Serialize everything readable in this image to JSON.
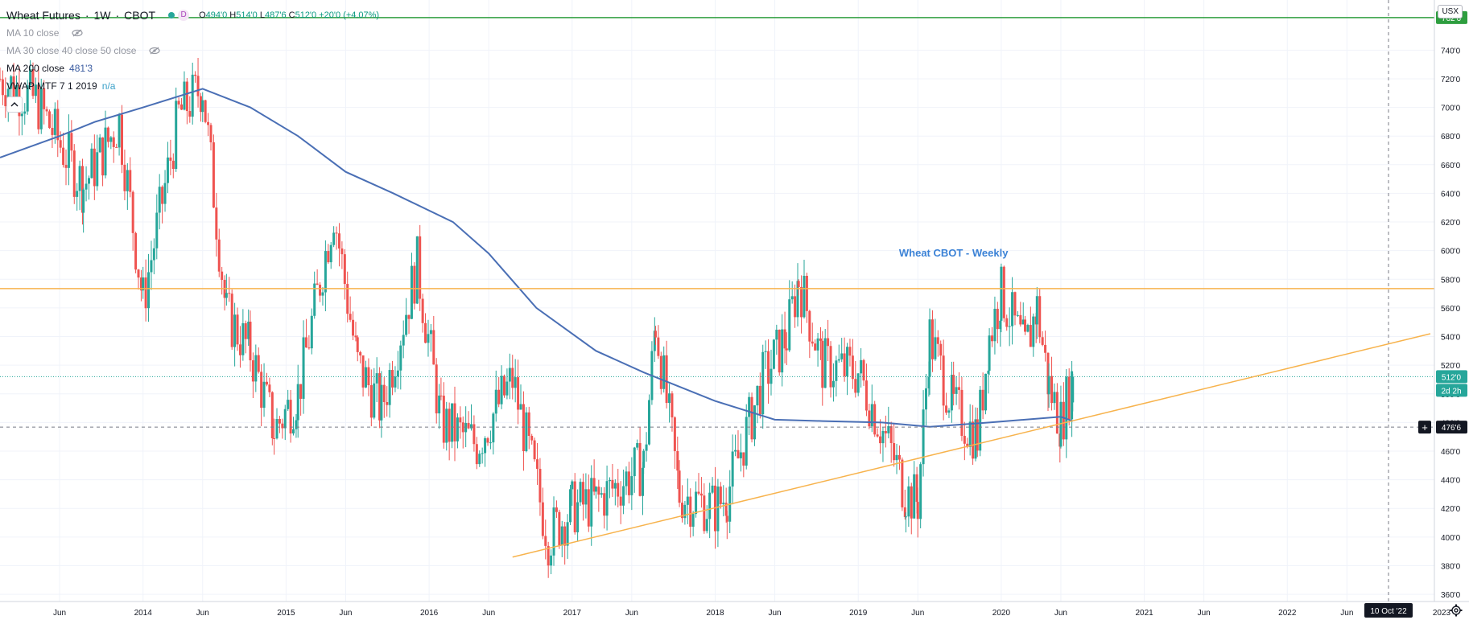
{
  "header": {
    "symbol": "Wheat Futures",
    "interval": "1W",
    "exchange": "CBOT",
    "badge": "D",
    "ohlc": {
      "o_key": "O",
      "o": "494'0",
      "h_key": "H",
      "h": "514'0",
      "l_key": "L",
      "l": "487'6",
      "c_key": "C",
      "c": "512'0",
      "change": "+20'0 (+4.07%)"
    }
  },
  "indicators": [
    {
      "label": "MA 10 close",
      "value": "",
      "hidden": true
    },
    {
      "label": "MA 30 close 40 close 50 close",
      "value": "",
      "hidden": true
    },
    {
      "label": "MA 200 close",
      "value": "481'3",
      "hidden": false
    },
    {
      "label": "VWAP MTF 7 1 2019",
      "value": "n/a",
      "hidden": false
    }
  ],
  "currency_button": "USX",
  "annotation": "Wheat CBOT - Weekly",
  "colors": {
    "up": "#26a69a",
    "down": "#ef5350",
    "ma200": "#4a6fb5",
    "support": "#f7b34d",
    "resistance": "#f7b34d",
    "top_line": "#2e9e3f",
    "price_line": "#26a69a",
    "grid": "#f0f3fa"
  },
  "price_axis": {
    "ticks": [
      "740'0",
      "720'0",
      "700'0",
      "680'0",
      "660'0",
      "640'0",
      "620'0",
      "600'0",
      "580'0",
      "560'0",
      "540'0",
      "520'0",
      "500'0",
      "480'0",
      "460'0",
      "440'0",
      "420'0",
      "400'0",
      "380'0",
      "360'0"
    ],
    "top_label": "762'6",
    "current_label": "512'0",
    "countdown_label": "2d 2h",
    "crosshair_label": "476'6"
  },
  "time_axis": {
    "ticks": [
      "Jun",
      "2014",
      "Jun",
      "2015",
      "Jun",
      "2016",
      "Jun",
      "2017",
      "Jun",
      "2018",
      "Jun",
      "2019",
      "Jun",
      "2020",
      "Jun",
      "2021",
      "Jun",
      "2022",
      "Jun",
      "2023"
    ],
    "crosshair_label": "10 Oct '22"
  },
  "chart_data": {
    "type": "candlestick",
    "ylim": [
      355,
      775
    ],
    "x_range": [
      "2013-01",
      "2023-01"
    ],
    "horizontal_levels": {
      "resistance": 573.5,
      "top": 762.75,
      "current": 512,
      "crosshair": 476.75
    },
    "trendline": {
      "from": [
        "2016-08",
        386
      ],
      "to": [
        "2023-01",
        542
      ]
    },
    "ma200": [
      [
        "2013-01",
        665
      ],
      [
        "2013-06",
        680
      ],
      [
        "2013-09",
        690
      ],
      [
        "2014-01",
        700
      ],
      [
        "2014-06",
        713
      ],
      [
        "2014-10",
        700
      ],
      [
        "2015-02",
        680
      ],
      [
        "2015-06",
        655
      ],
      [
        "2015-10",
        640
      ],
      [
        "2016-03",
        620
      ],
      [
        "2016-06",
        598
      ],
      [
        "2016-10",
        560
      ],
      [
        "2017-03",
        530
      ],
      [
        "2017-07",
        515
      ],
      [
        "2018-01",
        495
      ],
      [
        "2018-06",
        482
      ],
      [
        "2018-10",
        481
      ],
      [
        "2019-03",
        480
      ],
      [
        "2019-07",
        477
      ],
      [
        "2019-12",
        480
      ],
      [
        "2020-06",
        484
      ],
      [
        "2020-07",
        481
      ]
    ],
    "price_path": [
      [
        "2013-01",
        720
      ],
      [
        "2013-04",
        705
      ],
      [
        "2013-08",
        645
      ],
      [
        "2013-11",
        690
      ],
      [
        "2014-01",
        565
      ],
      [
        "2014-04",
        695
      ],
      [
        "2014-06",
        715
      ],
      [
        "2014-08",
        555
      ],
      [
        "2014-10",
        530
      ],
      [
        "2014-12",
        475
      ],
      [
        "2015-02",
        500
      ],
      [
        "2015-05",
        628
      ],
      [
        "2015-07",
        520
      ],
      [
        "2015-09",
        490
      ],
      [
        "2015-12",
        590
      ],
      [
        "2016-02",
        480
      ],
      [
        "2016-05",
        465
      ],
      [
        "2016-08",
        510
      ],
      [
        "2016-11",
        400
      ],
      [
        "2017-01",
        420
      ],
      [
        "2017-03",
        425
      ],
      [
        "2017-07",
        450
      ],
      [
        "2017-08",
        550
      ],
      [
        "2017-10",
        430
      ],
      [
        "2018-01",
        420
      ],
      [
        "2018-02",
        430
      ],
      [
        "2018-05",
        510
      ],
      [
        "2018-07",
        540
      ],
      [
        "2018-08",
        580
      ],
      [
        "2018-10",
        520
      ],
      [
        "2019-01",
        515
      ],
      [
        "2019-04",
        455
      ],
      [
        "2019-05",
        430
      ],
      [
        "2019-06",
        425
      ],
      [
        "2019-07",
        540
      ],
      [
        "2019-09",
        490
      ],
      [
        "2019-11",
        470
      ],
      [
        "2019-12",
        540
      ],
      [
        "2020-01",
        570
      ],
      [
        "2020-03",
        530
      ],
      [
        "2020-04",
        560
      ],
      [
        "2020-05",
        505
      ],
      [
        "2020-06",
        480
      ],
      [
        "2020-07",
        512
      ]
    ]
  }
}
